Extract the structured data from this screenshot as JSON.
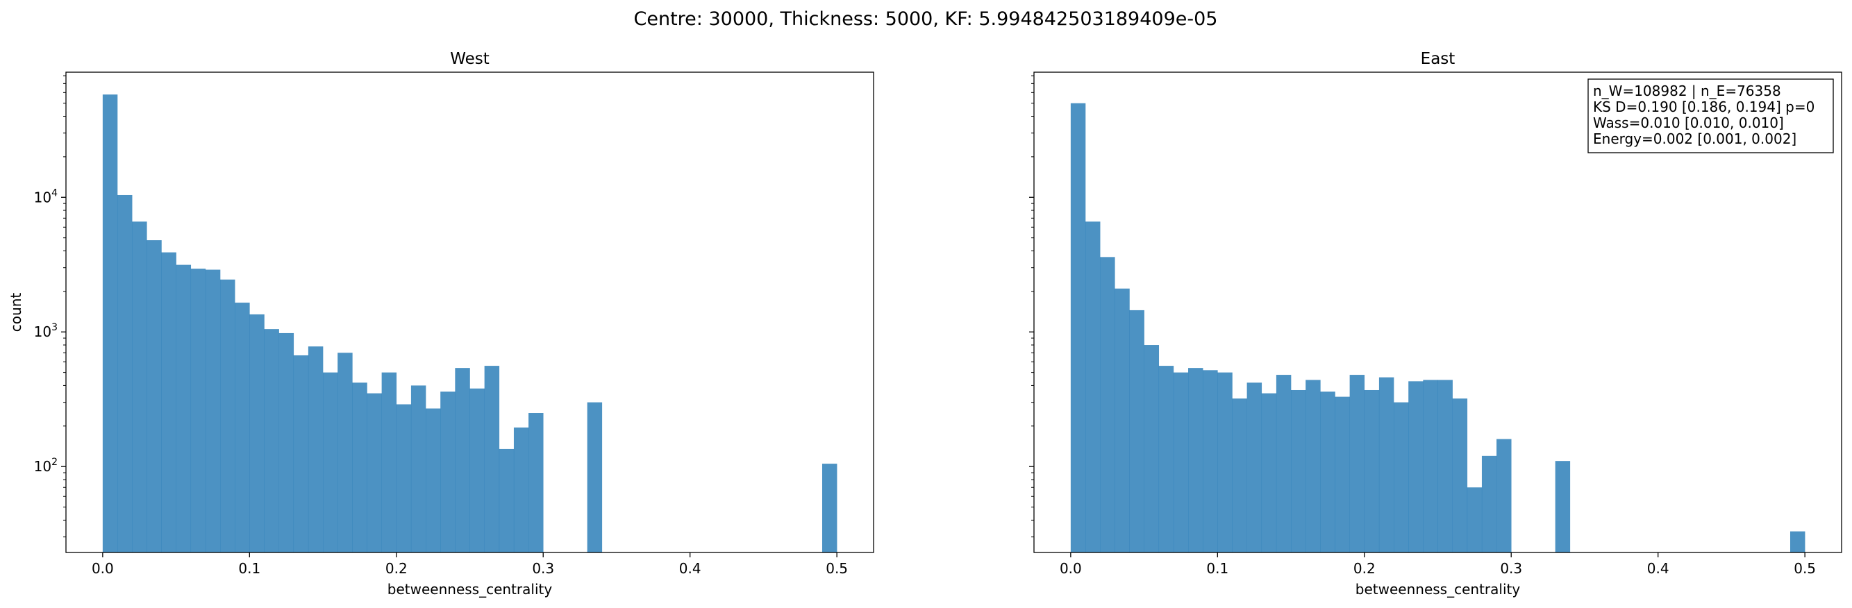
{
  "suptitle": "Centre: 30000, Thickness: 5000, KF: 5.994842503189409e-05",
  "chart_data": [
    {
      "type": "bar",
      "title": "West",
      "xlabel": "betweenness_centrality",
      "ylabel": "count",
      "yscale": "log",
      "xlim": [
        -0.025,
        0.525
      ],
      "ylim": [
        23,
        85000
      ],
      "bin_width": 0.01,
      "color": "#1f77b4",
      "xticks": [
        0.0,
        0.1,
        0.2,
        0.3,
        0.4,
        0.5
      ],
      "xtick_labels": [
        "0.0",
        "0.1",
        "0.2",
        "0.3",
        "0.4",
        "0.5"
      ],
      "yticks": [
        100,
        1000,
        10000
      ],
      "ytick_labels": [
        "10",
        "10",
        "10"
      ],
      "ytick_exponents": [
        "2",
        "3",
        "4"
      ],
      "bin_starts": [
        0.0,
        0.01,
        0.02,
        0.03,
        0.04,
        0.05,
        0.06,
        0.07,
        0.08,
        0.09,
        0.1,
        0.11,
        0.12,
        0.13,
        0.14,
        0.15,
        0.16,
        0.17,
        0.18,
        0.19,
        0.2,
        0.21,
        0.22,
        0.23,
        0.24,
        0.25,
        0.26,
        0.27,
        0.28,
        0.29,
        0.3,
        0.31,
        0.32,
        0.33,
        0.34,
        0.35,
        0.36,
        0.37,
        0.38,
        0.39,
        0.4,
        0.41,
        0.42,
        0.43,
        0.44,
        0.45,
        0.46,
        0.47,
        0.48,
        0.49
      ],
      "values": [
        58000,
        10400,
        6600,
        4800,
        3900,
        3150,
        2950,
        2900,
        2450,
        1650,
        1350,
        1050,
        980,
        670,
        780,
        500,
        700,
        420,
        350,
        500,
        290,
        400,
        270,
        360,
        540,
        380,
        560,
        135,
        195,
        250,
        0,
        0,
        0,
        300,
        0,
        0,
        0,
        0,
        0,
        0,
        0,
        0,
        0,
        0,
        0,
        0,
        0,
        0,
        0,
        105
      ]
    },
    {
      "type": "bar",
      "title": "East",
      "xlabel": "betweenness_centrality",
      "ylabel": "",
      "yscale": "log",
      "xlim": [
        -0.025,
        0.525
      ],
      "ylim": [
        23,
        85000
      ],
      "bin_width": 0.01,
      "color": "#1f77b4",
      "xticks": [
        0.0,
        0.1,
        0.2,
        0.3,
        0.4,
        0.5
      ],
      "xtick_labels": [
        "0.0",
        "0.1",
        "0.2",
        "0.3",
        "0.4",
        "0.5"
      ],
      "bin_starts": [
        0.0,
        0.01,
        0.02,
        0.03,
        0.04,
        0.05,
        0.06,
        0.07,
        0.08,
        0.09,
        0.1,
        0.11,
        0.12,
        0.13,
        0.14,
        0.15,
        0.16,
        0.17,
        0.18,
        0.19,
        0.2,
        0.21,
        0.22,
        0.23,
        0.24,
        0.25,
        0.26,
        0.27,
        0.28,
        0.29,
        0.3,
        0.31,
        0.32,
        0.33,
        0.34,
        0.35,
        0.36,
        0.37,
        0.38,
        0.39,
        0.4,
        0.41,
        0.42,
        0.43,
        0.44,
        0.45,
        0.46,
        0.47,
        0.48,
        0.49
      ],
      "values": [
        50000,
        6600,
        3600,
        2100,
        1450,
        800,
        560,
        500,
        540,
        520,
        500,
        320,
        420,
        350,
        480,
        370,
        440,
        360,
        330,
        480,
        370,
        460,
        300,
        430,
        440,
        440,
        320,
        70,
        120,
        160,
        0,
        0,
        0,
        110,
        0,
        0,
        0,
        0,
        0,
        0,
        0,
        0,
        0,
        0,
        0,
        0,
        0,
        0,
        0,
        33
      ],
      "annotation": [
        "n_W=108982 | n_E=76358",
        "KS D=0.190 [0.186, 0.194]  p=0",
        "Wass=0.010 [0.010, 0.010]",
        "Energy=0.002 [0.001, 0.002]"
      ]
    }
  ]
}
